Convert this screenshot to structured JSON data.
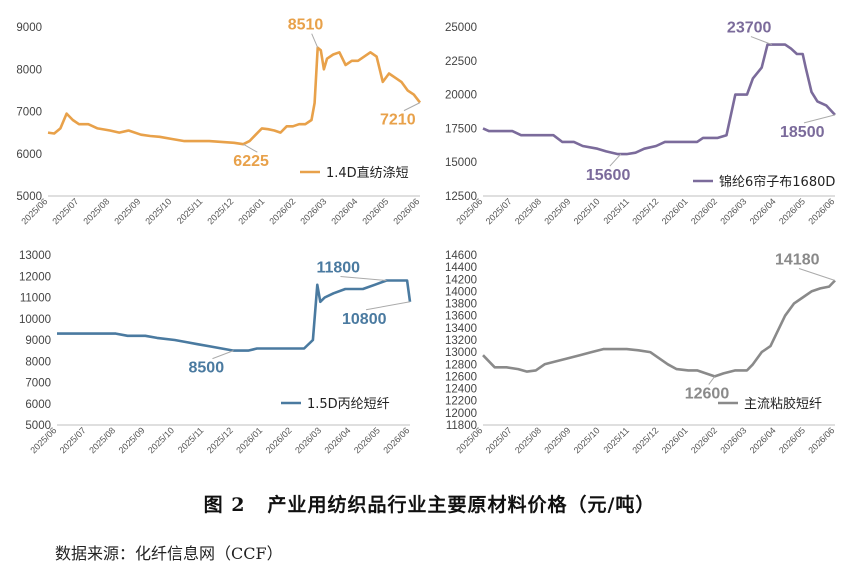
{
  "figure": {
    "number": "图 2",
    "title": "产业用纺织品行业主要原材料价格（元/吨）",
    "source": "数据来源：化纤信息网（CCF）"
  },
  "chart_data": [
    {
      "type": "line",
      "series": [
        {
          "name": "1.4D直纺涤短",
          "color": "#E8A14A"
        }
      ],
      "x_ticks": [
        "2025/06",
        "2025/07",
        "2025/08",
        "2025/09",
        "2025/10",
        "2025/11",
        "2025/12",
        "2026/01",
        "2026/02",
        "2026/03",
        "2026/04",
        "2026/05",
        "2026/06"
      ],
      "ylim": [
        5000,
        9000
      ],
      "y_ticks": [
        5000,
        6000,
        7000,
        8000,
        9000
      ],
      "legend_position": "bottom-right",
      "points": [
        [
          0,
          6500
        ],
        [
          0.2,
          6480
        ],
        [
          0.4,
          6600
        ],
        [
          0.6,
          6950
        ],
        [
          0.8,
          6800
        ],
        [
          1.0,
          6700
        ],
        [
          1.3,
          6700
        ],
        [
          1.6,
          6600
        ],
        [
          2.0,
          6550
        ],
        [
          2.3,
          6500
        ],
        [
          2.6,
          6550
        ],
        [
          3.0,
          6450
        ],
        [
          3.3,
          6420
        ],
        [
          3.6,
          6400
        ],
        [
          4.0,
          6350
        ],
        [
          4.4,
          6300
        ],
        [
          4.8,
          6300
        ],
        [
          5.2,
          6300
        ],
        [
          5.6,
          6280
        ],
        [
          6.0,
          6260
        ],
        [
          6.3,
          6225
        ],
        [
          6.5,
          6300
        ],
        [
          6.7,
          6450
        ],
        [
          6.9,
          6600
        ],
        [
          7.1,
          6580
        ],
        [
          7.3,
          6550
        ],
        [
          7.5,
          6500
        ],
        [
          7.7,
          6650
        ],
        [
          7.9,
          6650
        ],
        [
          8.1,
          6700
        ],
        [
          8.3,
          6700
        ],
        [
          8.5,
          6800
        ],
        [
          8.6,
          7200
        ],
        [
          8.7,
          8510
        ],
        [
          8.8,
          8450
        ],
        [
          8.9,
          8000
        ],
        [
          9.0,
          8250
        ],
        [
          9.2,
          8350
        ],
        [
          9.4,
          8400
        ],
        [
          9.6,
          8100
        ],
        [
          9.8,
          8200
        ],
        [
          10.0,
          8200
        ],
        [
          10.2,
          8300
        ],
        [
          10.4,
          8400
        ],
        [
          10.6,
          8300
        ],
        [
          10.8,
          7700
        ],
        [
          11.0,
          7900
        ],
        [
          11.2,
          7800
        ],
        [
          11.4,
          7700
        ],
        [
          11.6,
          7500
        ],
        [
          11.8,
          7400
        ],
        [
          12.0,
          7210
        ]
      ],
      "annotations": [
        {
          "label": "8510",
          "x": 8.7,
          "y": 8510
        },
        {
          "label": "6225",
          "x": 6.3,
          "y": 6225
        },
        {
          "label": "7210",
          "x": 12.0,
          "y": 7210
        }
      ]
    },
    {
      "type": "line",
      "series": [
        {
          "name": "锦纶6帘子布1680D",
          "color": "#7B6B9B"
        }
      ],
      "x_ticks": [
        "2025/06",
        "2025/07",
        "2025/08",
        "2025/09",
        "2025/10",
        "2025/11",
        "2025/12",
        "2026/01",
        "2026/02",
        "2026/03",
        "2026/04",
        "2026/05",
        "2026/06"
      ],
      "ylim": [
        12500,
        25000
      ],
      "y_ticks": [
        12500,
        15000,
        17500,
        20000,
        22500,
        25000
      ],
      "legend_position": "bottom-right",
      "points": [
        [
          0,
          17500
        ],
        [
          0.2,
          17300
        ],
        [
          0.6,
          17300
        ],
        [
          1.0,
          17300
        ],
        [
          1.3,
          17000
        ],
        [
          2.0,
          17000
        ],
        [
          2.4,
          17000
        ],
        [
          2.7,
          16500
        ],
        [
          3.1,
          16500
        ],
        [
          3.4,
          16200
        ],
        [
          3.9,
          16000
        ],
        [
          4.2,
          15800
        ],
        [
          4.6,
          15600
        ],
        [
          4.9,
          15600
        ],
        [
          5.2,
          15700
        ],
        [
          5.5,
          16000
        ],
        [
          5.9,
          16200
        ],
        [
          6.2,
          16500
        ],
        [
          6.7,
          16500
        ],
        [
          7.0,
          16500
        ],
        [
          7.3,
          16500
        ],
        [
          7.5,
          16800
        ],
        [
          8.0,
          16800
        ],
        [
          8.3,
          17000
        ],
        [
          8.6,
          20000
        ],
        [
          9.0,
          20000
        ],
        [
          9.2,
          21200
        ],
        [
          9.5,
          22000
        ],
        [
          9.7,
          23700
        ],
        [
          10.0,
          23700
        ],
        [
          10.3,
          23700
        ],
        [
          10.5,
          23400
        ],
        [
          10.7,
          23000
        ],
        [
          10.9,
          23000
        ],
        [
          11.0,
          22000
        ],
        [
          11.2,
          20200
        ],
        [
          11.4,
          19500
        ],
        [
          11.7,
          19200
        ],
        [
          12.0,
          18500
        ]
      ],
      "annotations": [
        {
          "label": "23700",
          "x": 9.85,
          "y": 23700
        },
        {
          "label": "15600",
          "x": 4.7,
          "y": 15600
        },
        {
          "label": "18500",
          "x": 12.0,
          "y": 18500
        }
      ]
    },
    {
      "type": "line",
      "series": [
        {
          "name": "1.5D丙纶短纤",
          "color": "#4A7AA0"
        }
      ],
      "x_ticks": [
        "2025/06",
        "2025/07",
        "2025/08",
        "2025/09",
        "2025/10",
        "2025/11",
        "2025/12",
        "2026/01",
        "2026/02",
        "2026/03",
        "2026/04",
        "2026/05",
        "2026/06"
      ],
      "ylim": [
        5000,
        13000
      ],
      "y_ticks": [
        5000,
        6000,
        7000,
        8000,
        9000,
        10000,
        11000,
        12000,
        13000
      ],
      "legend_position": "bottom-right",
      "points": [
        [
          0,
          9300
        ],
        [
          0.5,
          9300
        ],
        [
          1.0,
          9300
        ],
        [
          1.5,
          9300
        ],
        [
          2.0,
          9300
        ],
        [
          2.4,
          9200
        ],
        [
          3.0,
          9200
        ],
        [
          3.4,
          9100
        ],
        [
          4.0,
          9000
        ],
        [
          4.4,
          8900
        ],
        [
          4.8,
          8800
        ],
        [
          5.2,
          8700
        ],
        [
          5.6,
          8600
        ],
        [
          6.0,
          8500
        ],
        [
          6.5,
          8500
        ],
        [
          6.8,
          8600
        ],
        [
          7.2,
          8600
        ],
        [
          7.6,
          8600
        ],
        [
          8.0,
          8600
        ],
        [
          8.4,
          8600
        ],
        [
          8.7,
          9000
        ],
        [
          8.85,
          11600
        ],
        [
          8.95,
          10800
        ],
        [
          9.1,
          11000
        ],
        [
          9.4,
          11200
        ],
        [
          9.8,
          11400
        ],
        [
          10.4,
          11400
        ],
        [
          10.8,
          11600
        ],
        [
          11.2,
          11800
        ],
        [
          11.6,
          11800
        ],
        [
          11.9,
          11800
        ],
        [
          12.0,
          10800
        ]
      ],
      "annotations": [
        {
          "label": "11800",
          "x": 11.2,
          "y": 11800
        },
        {
          "label": "8500",
          "x": 6.0,
          "y": 8500
        },
        {
          "label": "10800",
          "x": 12.0,
          "y": 10800
        }
      ]
    },
    {
      "type": "line",
      "series": [
        {
          "name": "主流粘胶短纤",
          "color": "#8A8A8A"
        }
      ],
      "x_ticks": [
        "2025/06",
        "2025/07",
        "2025/08",
        "2025/09",
        "2025/10",
        "2025/11",
        "2025/12",
        "2026/01",
        "2026/02",
        "2026/03",
        "2026/04",
        "2026/05",
        "2026/06"
      ],
      "ylim": [
        11800,
        14600
      ],
      "y_ticks": [
        11800,
        12000,
        12200,
        12400,
        12600,
        12800,
        13000,
        13200,
        13400,
        13600,
        13800,
        14000,
        14200,
        14400,
        14600
      ],
      "legend_position": "bottom-right",
      "points": [
        [
          0,
          12950
        ],
        [
          0.2,
          12850
        ],
        [
          0.4,
          12750
        ],
        [
          0.8,
          12750
        ],
        [
          1.2,
          12720
        ],
        [
          1.5,
          12680
        ],
        [
          1.8,
          12700
        ],
        [
          2.1,
          12800
        ],
        [
          2.5,
          12850
        ],
        [
          2.9,
          12900
        ],
        [
          3.3,
          12950
        ],
        [
          3.7,
          13000
        ],
        [
          4.1,
          13050
        ],
        [
          4.5,
          13050
        ],
        [
          4.9,
          13050
        ],
        [
          5.3,
          13030
        ],
        [
          5.7,
          13000
        ],
        [
          6.0,
          12900
        ],
        [
          6.3,
          12800
        ],
        [
          6.6,
          12720
        ],
        [
          7.0,
          12700
        ],
        [
          7.3,
          12700
        ],
        [
          7.6,
          12650
        ],
        [
          7.9,
          12600
        ],
        [
          8.2,
          12650
        ],
        [
          8.6,
          12700
        ],
        [
          9.0,
          12700
        ],
        [
          9.2,
          12800
        ],
        [
          9.5,
          13000
        ],
        [
          9.8,
          13100
        ],
        [
          10.0,
          13300
        ],
        [
          10.3,
          13600
        ],
        [
          10.6,
          13800
        ],
        [
          10.9,
          13900
        ],
        [
          11.2,
          14000
        ],
        [
          11.5,
          14050
        ],
        [
          11.8,
          14080
        ],
        [
          12.0,
          14180
        ]
      ],
      "annotations": [
        {
          "label": "14180",
          "x": 12.0,
          "y": 14180
        },
        {
          "label": "12600",
          "x": 7.9,
          "y": 12600
        }
      ]
    }
  ]
}
